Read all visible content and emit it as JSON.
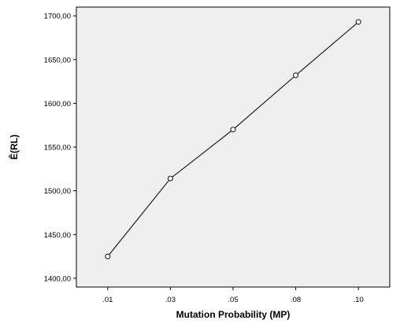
{
  "chart_data": {
    "type": "line",
    "title": "",
    "xlabel": "Mutation Probability (MP)",
    "ylabel": "Ê(RL)",
    "categories": [
      ".01",
      ".03",
      ".05",
      ".08",
      ".10"
    ],
    "series": [
      {
        "values": [
          1425,
          1514,
          1570,
          1632,
          1693
        ]
      }
    ],
    "ylim": [
      1390,
      1710
    ],
    "yticks": [
      1400,
      1450,
      1500,
      1550,
      1600,
      1650,
      1700
    ],
    "ytick_labels": [
      "1400,00",
      "1450,00",
      "1500,00",
      "1550,00",
      "1600,00",
      "1650,00",
      "1700,00"
    ],
    "grid": false,
    "legend": "none",
    "colors": {
      "plot_background": "#efefef",
      "line": "#222222",
      "marker_fill": "#ffffff"
    }
  }
}
